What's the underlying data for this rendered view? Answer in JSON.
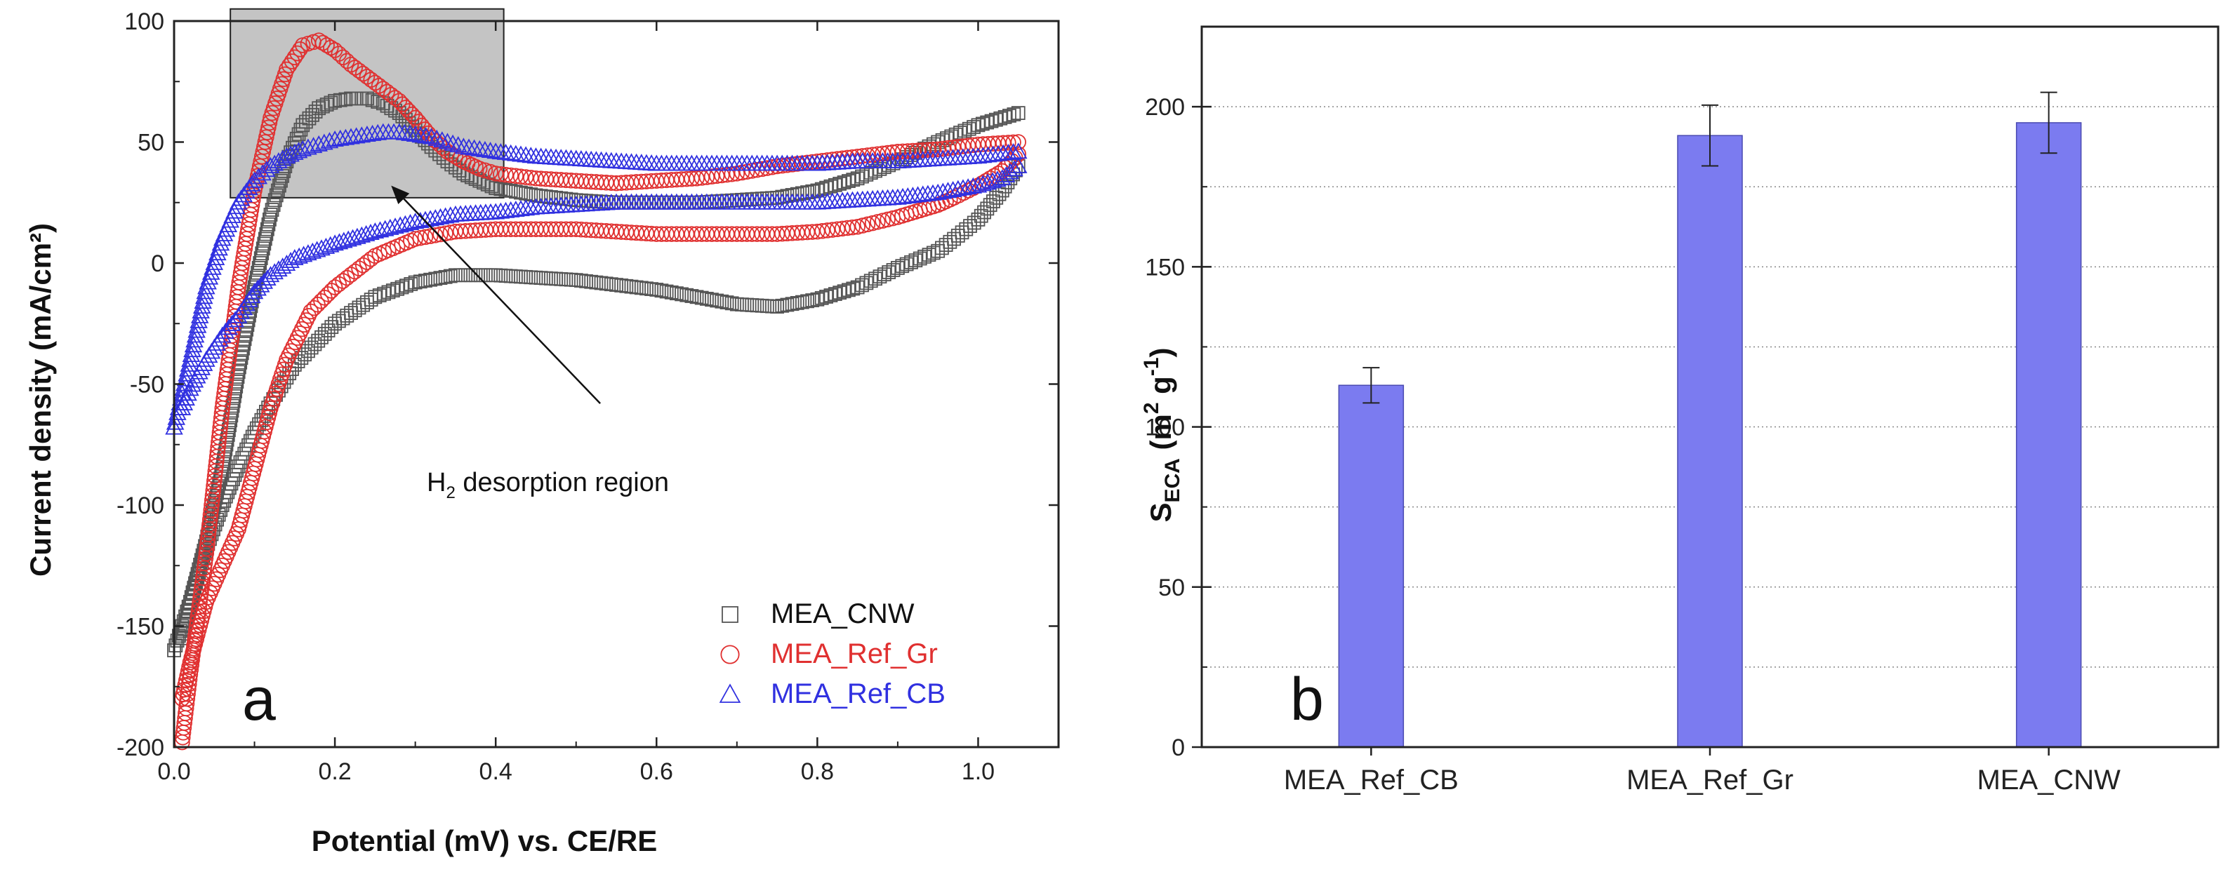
{
  "chart_data": [
    {
      "type": "scatter",
      "panel_label": "a",
      "xlabel": "Potential (mV) vs. CE/RE",
      "ylabel": "Current density (mA/cm²)",
      "xlim": [
        0.0,
        1.1
      ],
      "ylim": [
        -200,
        100
      ],
      "x_ticks": [
        0.0,
        0.2,
        0.4,
        0.6,
        0.8,
        1.0
      ],
      "x_tick_labels": [
        "0.0",
        "0.2",
        "0.4",
        "0.6",
        "0.8",
        "1.0"
      ],
      "y_ticks": [
        -200,
        -150,
        -100,
        -50,
        0,
        50,
        100
      ],
      "y_tick_labels": [
        "-200",
        "-150",
        "-100",
        "-50",
        "0",
        "50",
        "100"
      ],
      "annotation": {
        "text": "H",
        "subscript": "2",
        "text_after": " desorption region",
        "region_x": [
          0.07,
          0.41
        ],
        "region_y": [
          27,
          105
        ],
        "arrow_tip": [
          0.27,
          32
        ],
        "arrow_tail": [
          0.53,
          -58
        ]
      },
      "legend_position": "bottom-right",
      "series": [
        {
          "name": "MEA_CNW",
          "marker": "square",
          "color": "#555555",
          "forward": [
            [
              0.0,
              -160
            ],
            [
              0.02,
              -140
            ],
            [
              0.04,
              -115
            ],
            [
              0.06,
              -85
            ],
            [
              0.08,
              -45
            ],
            [
              0.1,
              -10
            ],
            [
              0.12,
              20
            ],
            [
              0.14,
              42
            ],
            [
              0.16,
              57
            ],
            [
              0.18,
              64
            ],
            [
              0.2,
              67
            ],
            [
              0.22,
              68
            ],
            [
              0.24,
              68
            ],
            [
              0.26,
              66
            ],
            [
              0.28,
              62
            ],
            [
              0.3,
              55
            ],
            [
              0.32,
              48
            ],
            [
              0.34,
              42
            ],
            [
              0.36,
              37
            ],
            [
              0.38,
              34
            ],
            [
              0.4,
              31
            ],
            [
              0.45,
              28
            ],
            [
              0.5,
              26
            ],
            [
              0.55,
              25
            ],
            [
              0.6,
              25
            ],
            [
              0.65,
              25
            ],
            [
              0.7,
              26
            ],
            [
              0.75,
              27
            ],
            [
              0.8,
              30
            ],
            [
              0.85,
              35
            ],
            [
              0.9,
              42
            ],
            [
              0.95,
              50
            ],
            [
              1.0,
              57
            ],
            [
              1.05,
              62
            ]
          ],
          "reverse": [
            [
              1.05,
              40
            ],
            [
              1.03,
              30
            ],
            [
              1.0,
              18
            ],
            [
              0.97,
              10
            ],
            [
              0.95,
              5
            ],
            [
              0.9,
              -2
            ],
            [
              0.85,
              -10
            ],
            [
              0.8,
              -15
            ],
            [
              0.75,
              -18
            ],
            [
              0.7,
              -17
            ],
            [
              0.65,
              -14
            ],
            [
              0.6,
              -11
            ],
            [
              0.55,
              -9
            ],
            [
              0.5,
              -7
            ],
            [
              0.45,
              -6
            ],
            [
              0.4,
              -5
            ],
            [
              0.35,
              -5
            ],
            [
              0.3,
              -8
            ],
            [
              0.25,
              -14
            ],
            [
              0.2,
              -25
            ],
            [
              0.15,
              -42
            ],
            [
              0.12,
              -58
            ],
            [
              0.1,
              -70
            ],
            [
              0.08,
              -84
            ],
            [
              0.06,
              -100
            ],
            [
              0.04,
              -118
            ],
            [
              0.02,
              -140
            ],
            [
              0.01,
              -155
            ]
          ]
        },
        {
          "name": "MEA_Ref_Gr",
          "marker": "circle",
          "color": "#e03030",
          "forward": [
            [
              0.01,
              -198
            ],
            [
              0.02,
              -170
            ],
            [
              0.04,
              -120
            ],
            [
              0.06,
              -60
            ],
            [
              0.08,
              -10
            ],
            [
              0.1,
              30
            ],
            [
              0.12,
              60
            ],
            [
              0.14,
              80
            ],
            [
              0.16,
              90
            ],
            [
              0.18,
              92
            ],
            [
              0.2,
              88
            ],
            [
              0.22,
              82
            ],
            [
              0.24,
              77
            ],
            [
              0.26,
              72
            ],
            [
              0.28,
              67
            ],
            [
              0.3,
              60
            ],
            [
              0.32,
              52
            ],
            [
              0.34,
              46
            ],
            [
              0.36,
              42
            ],
            [
              0.38,
              39
            ],
            [
              0.4,
              37
            ],
            [
              0.45,
              35
            ],
            [
              0.5,
              34
            ],
            [
              0.55,
              33
            ],
            [
              0.6,
              34
            ],
            [
              0.65,
              35
            ],
            [
              0.7,
              37
            ],
            [
              0.75,
              40
            ],
            [
              0.8,
              42
            ],
            [
              0.85,
              44
            ],
            [
              0.9,
              46
            ],
            [
              0.95,
              47
            ],
            [
              1.0,
              49
            ],
            [
              1.05,
              50
            ]
          ],
          "reverse": [
            [
              1.05,
              45
            ],
            [
              1.03,
              38
            ],
            [
              1.0,
              32
            ],
            [
              0.97,
              27
            ],
            [
              0.95,
              24
            ],
            [
              0.9,
              19
            ],
            [
              0.85,
              15
            ],
            [
              0.8,
              13
            ],
            [
              0.75,
              12
            ],
            [
              0.7,
              12
            ],
            [
              0.65,
              12
            ],
            [
              0.6,
              12
            ],
            [
              0.55,
              13
            ],
            [
              0.5,
              14
            ],
            [
              0.45,
              14
            ],
            [
              0.4,
              14
            ],
            [
              0.35,
              13
            ],
            [
              0.3,
              10
            ],
            [
              0.25,
              3
            ],
            [
              0.2,
              -10
            ],
            [
              0.17,
              -20
            ],
            [
              0.14,
              -40
            ],
            [
              0.12,
              -60
            ],
            [
              0.1,
              -85
            ],
            [
              0.08,
              -110
            ],
            [
              0.06,
              -125
            ],
            [
              0.04,
              -140
            ],
            [
              0.02,
              -165
            ],
            [
              0.01,
              -180
            ]
          ]
        },
        {
          "name": "MEA_Ref_CB",
          "marker": "triangle",
          "color": "#3030e0",
          "forward": [
            [
              0.0,
              -68
            ],
            [
              0.02,
              -40
            ],
            [
              0.04,
              -10
            ],
            [
              0.06,
              10
            ],
            [
              0.08,
              25
            ],
            [
              0.1,
              34
            ],
            [
              0.12,
              40
            ],
            [
              0.14,
              44
            ],
            [
              0.16,
              47
            ],
            [
              0.18,
              49
            ],
            [
              0.2,
              51
            ],
            [
              0.22,
              52
            ],
            [
              0.24,
              53
            ],
            [
              0.26,
              54
            ],
            [
              0.28,
              54
            ],
            [
              0.3,
              53
            ],
            [
              0.32,
              52
            ],
            [
              0.34,
              50
            ],
            [
              0.36,
              48
            ],
            [
              0.38,
              47
            ],
            [
              0.4,
              46
            ],
            [
              0.45,
              44
            ],
            [
              0.5,
              43
            ],
            [
              0.55,
              42
            ],
            [
              0.6,
              41
            ],
            [
              0.65,
              41
            ],
            [
              0.7,
              41
            ],
            [
              0.75,
              41
            ],
            [
              0.8,
              41
            ],
            [
              0.85,
              42
            ],
            [
              0.9,
              42
            ],
            [
              0.95,
              43
            ],
            [
              1.0,
              44
            ],
            [
              1.05,
              46
            ]
          ],
          "reverse": [
            [
              1.05,
              40
            ],
            [
              1.03,
              35
            ],
            [
              1.0,
              32
            ],
            [
              0.95,
              29
            ],
            [
              0.9,
              27
            ],
            [
              0.85,
              26
            ],
            [
              0.8,
              25
            ],
            [
              0.75,
              25
            ],
            [
              0.7,
              25
            ],
            [
              0.65,
              25
            ],
            [
              0.6,
              25
            ],
            [
              0.55,
              25
            ],
            [
              0.5,
              24
            ],
            [
              0.45,
              23
            ],
            [
              0.4,
              21
            ],
            [
              0.35,
              20
            ],
            [
              0.3,
              17
            ],
            [
              0.25,
              13
            ],
            [
              0.2,
              8
            ],
            [
              0.15,
              2
            ],
            [
              0.12,
              -5
            ],
            [
              0.1,
              -12
            ],
            [
              0.08,
              -22
            ],
            [
              0.06,
              -30
            ],
            [
              0.04,
              -40
            ],
            [
              0.02,
              -52
            ],
            [
              0.01,
              -60
            ]
          ]
        }
      ]
    },
    {
      "type": "bar",
      "panel_label": "b",
      "categories": [
        "MEA_Ref_CB",
        "MEA_Ref_Gr",
        "MEA_CNW"
      ],
      "values": [
        113,
        191,
        195
      ],
      "errors": [
        5.5,
        9.5,
        9.5
      ],
      "ylabel_main": "S",
      "ylabel_sub": "ECA",
      "ylabel_unit_open": " (m",
      "ylabel_sup1": "2",
      "ylabel_unit_mid": " g",
      "ylabel_sup2": "-1",
      "ylabel_unit_close": ")",
      "ylim": [
        0,
        225
      ],
      "y_ticks": [
        0,
        50,
        100,
        150,
        200
      ],
      "y_tick_labels": [
        "0",
        "50",
        "100",
        "150",
        "200"
      ],
      "grid_lines": [
        25,
        50,
        75,
        100,
        125,
        150,
        175,
        200
      ],
      "bar_color": "#7b7bf0",
      "grid": true
    }
  ]
}
